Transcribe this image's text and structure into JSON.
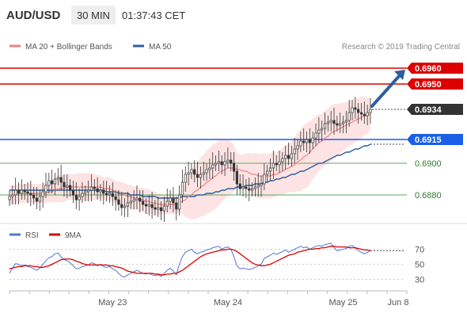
{
  "header": {
    "symbol": "AUD/USD",
    "timeframe": "30 MIN",
    "time": "01:37:43 CET"
  },
  "legend": {
    "ma20": "MA 20 + Bollinger Bands",
    "ma50": "MA 50",
    "copyright": "Research © 2019 Trading Central"
  },
  "colors": {
    "up": "#2e8b2e",
    "down": "#cc0000",
    "candle": "#333333",
    "band_fill": "#fde0e0",
    "ma20": "#f08080",
    "ma50": "#2c5fa0",
    "resistance": "#dd0000",
    "pivot": "#1a5fe6",
    "support": "#5aaa5a",
    "rsi": "#5078d2",
    "ma9": "#dd0000"
  },
  "chart_data": [
    {
      "type": "candlestick",
      "ylim": [
        0.6863,
        0.6968
      ],
      "levels": [
        {
          "value": 0.696,
          "label": "0.6960",
          "kind": "resistance"
        },
        {
          "value": 0.695,
          "label": "0.6950",
          "kind": "resistance"
        },
        {
          "value": 0.6934,
          "label": "0.6934",
          "kind": "last"
        },
        {
          "value": 0.6915,
          "label": "0.6915",
          "kind": "pivot"
        },
        {
          "value": 0.69,
          "label": "0.6900",
          "kind": "support"
        },
        {
          "value": 0.688,
          "label": "0.6880",
          "kind": "support"
        }
      ],
      "close": [
        0.6879,
        0.688,
        0.6883,
        0.6881,
        0.6883,
        0.6882,
        0.6881,
        0.688,
        0.6878,
        0.6876,
        0.6879,
        0.6882,
        0.6886,
        0.6889,
        0.6887,
        0.689,
        0.6891,
        0.6888,
        0.6885,
        0.6886,
        0.6883,
        0.688,
        0.6877,
        0.6879,
        0.6881,
        0.6882,
        0.6883,
        0.6885,
        0.6884,
        0.6882,
        0.6883,
        0.6881,
        0.688,
        0.6881,
        0.6879,
        0.6877,
        0.6874,
        0.6872,
        0.6873,
        0.6875,
        0.6876,
        0.6877,
        0.6878,
        0.6876,
        0.6874,
        0.6873,
        0.6874,
        0.6872,
        0.6871,
        0.6872,
        0.687,
        0.6873,
        0.6876,
        0.6878,
        0.6875,
        0.6871,
        0.688,
        0.6888,
        0.6893,
        0.6894,
        0.6896,
        0.6893,
        0.6891,
        0.6893,
        0.6894,
        0.6896,
        0.6897,
        0.6899,
        0.69,
        0.6901,
        0.6899,
        0.6901,
        0.6902,
        0.69,
        0.6895,
        0.6887,
        0.6884,
        0.6885,
        0.6884,
        0.6883,
        0.6884,
        0.6885,
        0.6886,
        0.6887,
        0.6893,
        0.6895,
        0.6897,
        0.69,
        0.6899,
        0.6901,
        0.6903,
        0.6905,
        0.6903,
        0.6906,
        0.6909,
        0.6911,
        0.6914,
        0.6913,
        0.6915,
        0.6913,
        0.6916,
        0.6919,
        0.6921,
        0.6922,
        0.6925,
        0.6926,
        0.6927,
        0.6925,
        0.6924,
        0.6925,
        0.6926,
        0.6927,
        0.6932,
        0.6935,
        0.6934,
        0.6932,
        0.6931,
        0.693,
        0.6932,
        0.6934
      ],
      "ma20": [
        0.688,
        0.688,
        0.688,
        0.6881,
        0.6881,
        0.6881,
        0.6881,
        0.6881,
        0.6881,
        0.6881,
        0.6881,
        0.6881,
        0.6881,
        0.6882,
        0.6882,
        0.6883,
        0.6884,
        0.6884,
        0.6884,
        0.6885,
        0.6885,
        0.6885,
        0.6885,
        0.6885,
        0.6885,
        0.6885,
        0.6885,
        0.6885,
        0.6885,
        0.6885,
        0.6885,
        0.6884,
        0.6884,
        0.6884,
        0.6883,
        0.6882,
        0.6882,
        0.6881,
        0.688,
        0.6879,
        0.6879,
        0.6878,
        0.6878,
        0.6877,
        0.6877,
        0.6876,
        0.6876,
        0.6875,
        0.6875,
        0.6874,
        0.6874,
        0.6874,
        0.6874,
        0.6874,
        0.6874,
        0.6874,
        0.6875,
        0.6876,
        0.6877,
        0.6879,
        0.688,
        0.6882,
        0.6883,
        0.6885,
        0.6886,
        0.6888,
        0.6889,
        0.6891,
        0.6892,
        0.6894,
        0.6895,
        0.6896,
        0.6897,
        0.6897,
        0.6897,
        0.6896,
        0.6896,
        0.6895,
        0.6895,
        0.6894,
        0.6893,
        0.6893,
        0.6892,
        0.6892,
        0.6892,
        0.6892,
        0.6892,
        0.6893,
        0.6893,
        0.6894,
        0.6895,
        0.6896,
        0.6897,
        0.6898,
        0.6899,
        0.6901,
        0.6902,
        0.6904,
        0.6905,
        0.6907,
        0.6909,
        0.6911,
        0.6913,
        0.6914,
        0.6916,
        0.6917,
        0.6919,
        0.692,
        0.6921,
        0.6922,
        0.6923,
        0.6924,
        0.6925,
        0.6926,
        0.6927,
        0.6928,
        0.6929,
        0.693,
        0.693,
        0.6931
      ],
      "ma50": [
        0.6883,
        0.6883,
        0.6883,
        0.6883,
        0.6883,
        0.6883,
        0.6883,
        0.6883,
        0.6883,
        0.6883,
        0.6883,
        0.6883,
        0.6883,
        0.6883,
        0.6883,
        0.6883,
        0.6883,
        0.6883,
        0.6883,
        0.6883,
        0.6883,
        0.6883,
        0.6883,
        0.6883,
        0.6883,
        0.6883,
        0.6883,
        0.6883,
        0.6883,
        0.6883,
        0.6883,
        0.6883,
        0.6882,
        0.6882,
        0.6882,
        0.6882,
        0.6881,
        0.6881,
        0.6881,
        0.6881,
        0.688,
        0.688,
        0.688,
        0.688,
        0.6879,
        0.6879,
        0.6879,
        0.6879,
        0.6879,
        0.6878,
        0.6878,
        0.6878,
        0.6878,
        0.6878,
        0.6878,
        0.6878,
        0.6878,
        0.6879,
        0.6879,
        0.6879,
        0.6879,
        0.6879,
        0.688,
        0.688,
        0.688,
        0.6881,
        0.6881,
        0.6881,
        0.6882,
        0.6882,
        0.6883,
        0.6883,
        0.6884,
        0.6884,
        0.6884,
        0.6885,
        0.6885,
        0.6885,
        0.6886,
        0.6886,
        0.6886,
        0.6887,
        0.6887,
        0.6887,
        0.6888,
        0.6888,
        0.6889,
        0.6889,
        0.689,
        0.689,
        0.6891,
        0.6891,
        0.6892,
        0.6893,
        0.6893,
        0.6894,
        0.6895,
        0.6895,
        0.6896,
        0.6897,
        0.6898,
        0.6899,
        0.69,
        0.69,
        0.6901,
        0.6902,
        0.6903,
        0.6904,
        0.6905,
        0.6905,
        0.6906,
        0.6907,
        0.6907,
        0.6908,
        0.6909,
        0.6909,
        0.691,
        0.6911,
        0.6911,
        0.6912
      ]
    },
    {
      "type": "line",
      "ylim": [
        20,
        80
      ],
      "ticks": [
        {
          "value": 70,
          "label": "70"
        },
        {
          "value": 50,
          "label": "50"
        },
        {
          "value": 30,
          "label": "30"
        }
      ],
      "series": [
        {
          "name": "RSI",
          "values": [
            38,
            45,
            51,
            50,
            48,
            49,
            47,
            46,
            44,
            42,
            45,
            50,
            55,
            59,
            60,
            64,
            65,
            60,
            56,
            55,
            52,
            48,
            44,
            45,
            47,
            48,
            49,
            52,
            51,
            48,
            50,
            47,
            46,
            47,
            44,
            42,
            38,
            34,
            33,
            36,
            38,
            40,
            42,
            40,
            38,
            37,
            38,
            36,
            35,
            36,
            34,
            38,
            42,
            45,
            41,
            36,
            50,
            60,
            66,
            68,
            70,
            66,
            64,
            66,
            67,
            69,
            70,
            72,
            73,
            74,
            70,
            72,
            73,
            70,
            60,
            48,
            44,
            45,
            44,
            43,
            44,
            46,
            48,
            50,
            58,
            60,
            62,
            65,
            63,
            65,
            67,
            69,
            66,
            68,
            70,
            72,
            74,
            72,
            73,
            70,
            72,
            74,
            75,
            74,
            76,
            77,
            78,
            72,
            68,
            69,
            70,
            71,
            74,
            75,
            72,
            68,
            66,
            64,
            66,
            68
          ]
        },
        {
          "name": "9MA",
          "values": [
            44,
            45,
            46,
            47,
            47,
            48,
            48,
            48,
            47,
            47,
            46,
            46,
            47,
            48,
            50,
            52,
            54,
            56,
            57,
            57,
            57,
            56,
            54,
            53,
            51,
            50,
            49,
            49,
            49,
            49,
            49,
            49,
            49,
            48,
            48,
            47,
            46,
            45,
            43,
            41,
            40,
            39,
            38,
            38,
            38,
            38,
            38,
            38,
            37,
            37,
            36,
            36,
            37,
            37,
            38,
            38,
            40,
            42,
            45,
            48,
            51,
            54,
            57,
            60,
            62,
            64,
            65,
            66,
            67,
            68,
            69,
            69,
            70,
            70,
            69,
            67,
            64,
            61,
            58,
            55,
            52,
            50,
            49,
            48,
            48,
            49,
            50,
            52,
            54,
            56,
            58,
            60,
            62,
            63,
            64,
            66,
            67,
            68,
            69,
            70,
            70,
            71,
            71,
            72,
            72,
            73,
            74,
            74,
            73,
            73,
            73,
            73,
            72,
            72,
            72,
            71,
            70,
            69,
            69,
            68
          ]
        }
      ]
    }
  ],
  "xaxis": {
    "labels": [
      {
        "index": 34,
        "label": "May 23"
      },
      {
        "index": 72,
        "label": "May 24"
      },
      {
        "index": 110,
        "label": "May 25"
      },
      {
        "index": 126,
        "label": "Jun 8"
      }
    ]
  }
}
